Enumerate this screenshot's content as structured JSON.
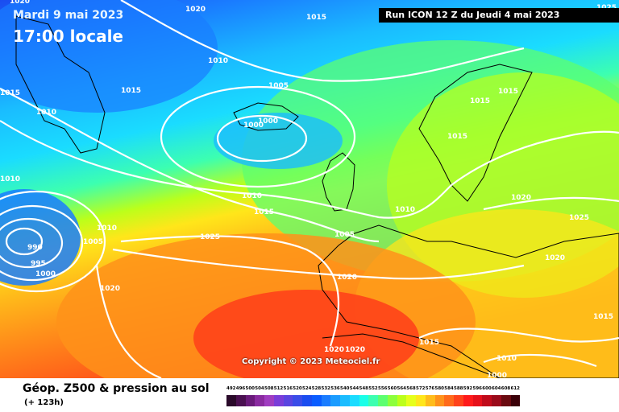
{
  "header": {
    "date": "Mardi 9 mai 2023",
    "time": "17:00 locale",
    "run": "Run ICON 12 Z du Jeudi 4 mai 2023"
  },
  "footer": {
    "title": "Géop. Z500 & pression au sol",
    "subtitle": "(+ 123h)",
    "copyright": "Copyright © 2023 Meteociel.fr"
  },
  "isobar_labels": [
    "1020",
    "1015",
    "1010",
    "1015",
    "1015",
    "1010",
    "1005",
    "1000",
    "1000",
    "1015",
    "1015",
    "1015",
    "1010",
    "1010",
    "1020",
    "1010",
    "1015",
    "1005",
    "1020",
    "1025",
    "1025",
    "1010",
    "1005",
    "990",
    "995",
    "1000",
    "1020",
    "1020",
    "1020",
    "1020",
    "1015",
    "1010",
    "1015",
    "1000",
    "1020",
    "1025"
  ],
  "legend": {
    "values": [
      "492",
      "496",
      "500",
      "504",
      "508",
      "512",
      "516",
      "520",
      "524",
      "528",
      "532",
      "536",
      "540",
      "544",
      "548",
      "552",
      "556",
      "560",
      "564",
      "568",
      "572",
      "576",
      "580",
      "584",
      "588",
      "592",
      "596",
      "600",
      "604",
      "608",
      "612"
    ],
    "colors": [
      "#2a0a2a",
      "#4a1050",
      "#6a1a7a",
      "#8a2aa0",
      "#a03cc0",
      "#7a3cd8",
      "#5a44e0",
      "#3a4ce8",
      "#1a4cf0",
      "#0a5cff",
      "#1a7cff",
      "#1a9cff",
      "#1abcff",
      "#1adcff",
      "#1affe8",
      "#3cffb0",
      "#5cff70",
      "#8cff3c",
      "#bcff1a",
      "#e6ff1a",
      "#ffe61a",
      "#ffbc1a",
      "#ff921a",
      "#ff6a1a",
      "#ff421a",
      "#ff1a1a",
      "#e6101a",
      "#c00a1a",
      "#9a0a1a",
      "#6a0a10",
      "#3a0008"
    ]
  }
}
